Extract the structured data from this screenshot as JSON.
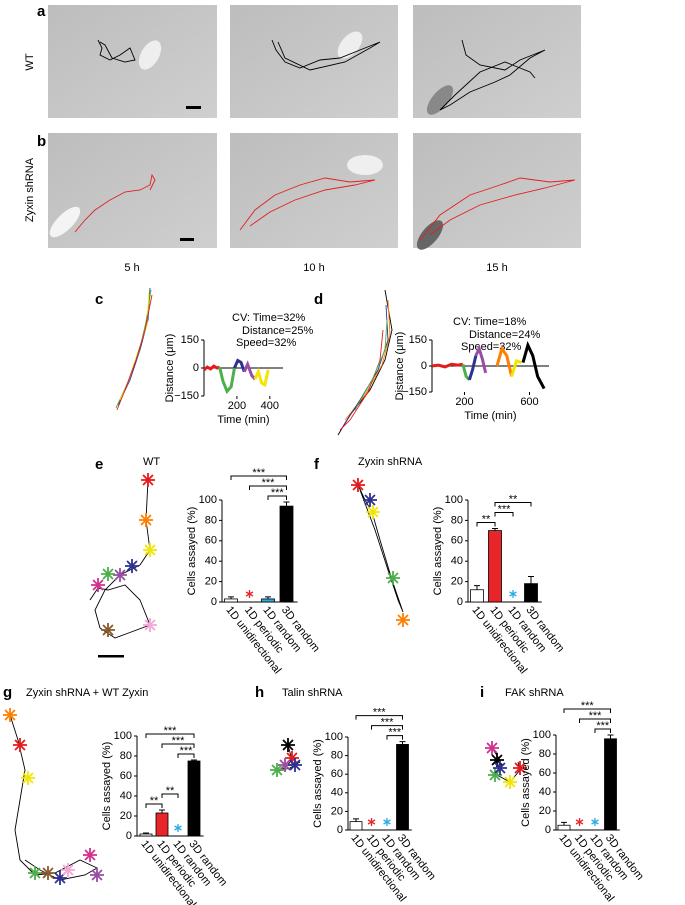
{
  "figure": {
    "panel_labels": [
      "a",
      "b",
      "c",
      "d",
      "e",
      "f",
      "g",
      "h",
      "i"
    ],
    "row_labels": [
      "WT",
      "Zyxin shRNA"
    ],
    "time_labels": [
      "5 h",
      "10 h",
      "15 h"
    ]
  },
  "chart_data": [
    {
      "type": "line",
      "ylabel": "Distance (μm)",
      "xlabel": "Time (min)",
      "cv_text": [
        "CV: Time=32%",
        "Distance=25%",
        "Speed=32%"
      ],
      "xlim": [
        0,
        480
      ],
      "xticks": [
        200,
        400
      ],
      "ylim": [
        -150,
        150
      ],
      "yticks": [
        150,
        0,
        {
          "value": -150,
          "label": "−150"
        }
      ],
      "series": [
        {
          "color": "#e41a1c",
          "x": [
            0,
            20,
            40,
            60,
            80,
            95
          ],
          "values": [
            -10,
            5,
            -5,
            10,
            0,
            5
          ]
        },
        {
          "color": "#4daf4a",
          "x": [
            95,
            115,
            140,
            165,
            185
          ],
          "values": [
            5,
            -70,
            -125,
            -100,
            0
          ]
        },
        {
          "color": "#2e3192",
          "x": [
            185,
            205,
            225,
            245
          ],
          "values": [
            0,
            40,
            30,
            -20
          ]
        },
        {
          "color": "#984ea3",
          "x": [
            245,
            265,
            290,
            310
          ],
          "values": [
            -20,
            20,
            -40,
            -60
          ]
        },
        {
          "color": "#f2e600",
          "x": [
            310,
            330,
            350,
            370,
            390
          ],
          "values": [
            -60,
            -20,
            -80,
            -90,
            -10
          ]
        }
      ]
    },
    {
      "type": "line",
      "ylabel": "Distance (μm)",
      "xlabel": "Time (min)",
      "cv_text": [
        "CV: Time=18%",
        "Distance=24%",
        "Speed=32%"
      ],
      "xlim": [
        0,
        720
      ],
      "xticks": [
        200,
        600
      ],
      "ylim": [
        -150,
        150
      ],
      "yticks": [
        150,
        0,
        {
          "value": -150,
          "label": "−150"
        }
      ],
      "series": [
        {
          "color": "#e41a1c",
          "x": [
            0,
            40,
            80,
            120,
            160,
            190
          ],
          "values": [
            0,
            5,
            -5,
            10,
            5,
            10
          ]
        },
        {
          "color": "#4daf4a",
          "x": [
            190,
            210,
            230
          ],
          "values": [
            10,
            -60,
            -80
          ]
        },
        {
          "color": "#2e3192",
          "x": [
            230,
            250,
            270
          ],
          "values": [
            -80,
            -20,
            60
          ]
        },
        {
          "color": "#984ea3",
          "x": [
            270,
            290,
            310,
            330
          ],
          "values": [
            60,
            100,
            40,
            -40
          ]
        },
        {
          "color": "#ff7f00",
          "x": [
            400,
            430,
            460,
            490
          ],
          "values": [
            0,
            100,
            60,
            -60
          ]
        },
        {
          "color": "#f2e600",
          "x": [
            490,
            520,
            550
          ],
          "values": [
            -60,
            30,
            20
          ]
        },
        {
          "color": "#000000",
          "x": [
            560,
            590,
            620,
            650,
            690
          ],
          "values": [
            20,
            120,
            60,
            -60,
            -130
          ]
        }
      ]
    },
    {
      "type": "bar",
      "title": "WT",
      "ylabel": "Cells assayed (%)",
      "categories": [
        "1D unidirectional",
        "1D periodic",
        "1D random",
        "3D random"
      ],
      "colors": [
        "#ffffff",
        "#e8262a",
        "#29abe2",
        "#000000"
      ],
      "values": [
        3,
        0,
        3,
        94
      ],
      "errors": [
        2,
        0,
        2,
        4
      ],
      "ylim": [
        0,
        100
      ],
      "yticks": [
        0,
        20,
        40,
        60,
        80,
        100
      ],
      "significance": [
        {
          "label": "***",
          "between": [
            "1D random",
            "3D random"
          ]
        },
        {
          "label": "***",
          "between": [
            "1D periodic",
            "3D random"
          ]
        },
        {
          "label": "***",
          "between": [
            "1D unidirectional",
            "3D random"
          ]
        }
      ]
    },
    {
      "type": "bar",
      "title": "Zyxin shRNA",
      "ylabel": "Cells assayed (%)",
      "categories": [
        "1D unidirectional",
        "1D periodic",
        "1D random",
        "3D random"
      ],
      "colors": [
        "#ffffff",
        "#e8262a",
        "#29abe2",
        "#000000"
      ],
      "values": [
        12,
        70,
        0,
        18
      ],
      "errors": [
        4,
        2,
        0,
        7
      ],
      "ylim": [
        0,
        100
      ],
      "yticks": [
        0,
        20,
        40,
        60,
        80,
        100
      ],
      "significance": [
        {
          "label": "**",
          "between": [
            "1D unidirectional",
            "1D periodic"
          ]
        },
        {
          "label": "***",
          "between": [
            "1D periodic",
            "1D random"
          ]
        },
        {
          "label": "**",
          "between": [
            "1D periodic",
            "3D random"
          ]
        }
      ]
    },
    {
      "type": "bar",
      "title": "Zyxin shRNA + WT Zyxin",
      "ylabel": "Cells assayed (%)",
      "categories": [
        "1D unidirectional",
        "1D periodic",
        "1D random",
        "3D random"
      ],
      "colors": [
        "#ffffff",
        "#e8262a",
        "#29abe2",
        "#000000"
      ],
      "values": [
        2,
        23,
        0,
        75
      ],
      "errors": [
        1,
        3,
        0,
        1
      ],
      "ylim": [
        0,
        100
      ],
      "yticks": [
        0,
        20,
        40,
        60,
        80,
        100
      ],
      "significance": [
        {
          "label": "**",
          "between": [
            "1D unidirectional",
            "1D periodic"
          ]
        },
        {
          "label": "**",
          "between": [
            "1D periodic",
            "1D random"
          ]
        },
        {
          "label": "***",
          "between": [
            "1D random",
            "3D random"
          ]
        },
        {
          "label": "***",
          "between": [
            "1D periodic",
            "3D random"
          ]
        },
        {
          "label": "***",
          "between": [
            "1D unidirectional",
            "3D random"
          ]
        }
      ]
    },
    {
      "type": "bar",
      "title": "Talin shRNA",
      "ylabel": "Cells assayed (%)",
      "categories": [
        "1D unidirectional",
        "1D periodic",
        "1D random",
        "3D random"
      ],
      "colors": [
        "#ffffff",
        "#e8262a",
        "#29abe2",
        "#000000"
      ],
      "values": [
        9,
        0,
        0,
        92
      ],
      "errors": [
        3,
        0,
        0,
        3
      ],
      "ylim": [
        0,
        100
      ],
      "yticks": [
        0,
        20,
        40,
        60,
        80,
        100
      ],
      "significance": [
        {
          "label": "***",
          "between": [
            "1D random",
            "3D random"
          ]
        },
        {
          "label": "***",
          "between": [
            "1D periodic",
            "3D random"
          ]
        },
        {
          "label": "***",
          "between": [
            "1D unidirectional",
            "3D random"
          ]
        }
      ]
    },
    {
      "type": "bar",
      "title": "FAK shRNA",
      "ylabel": "Cells assayed (%)",
      "categories": [
        "1D unidirectional",
        "1D periodic",
        "1D random",
        "3D random"
      ],
      "colors": [
        "#ffffff",
        "#e8262a",
        "#29abe2",
        "#000000"
      ],
      "values": [
        5,
        0,
        0,
        96
      ],
      "errors": [
        3,
        0,
        0,
        4
      ],
      "ylim": [
        0,
        100
      ],
      "yticks": [
        0,
        20,
        40,
        60,
        80,
        100
      ],
      "significance": [
        {
          "label": "***",
          "between": [
            "1D random",
            "3D random"
          ]
        },
        {
          "label": "***",
          "between": [
            "1D periodic",
            "3D random"
          ]
        },
        {
          "label": "***",
          "between": [
            "1D unidirectional",
            "3D random"
          ]
        }
      ]
    }
  ]
}
